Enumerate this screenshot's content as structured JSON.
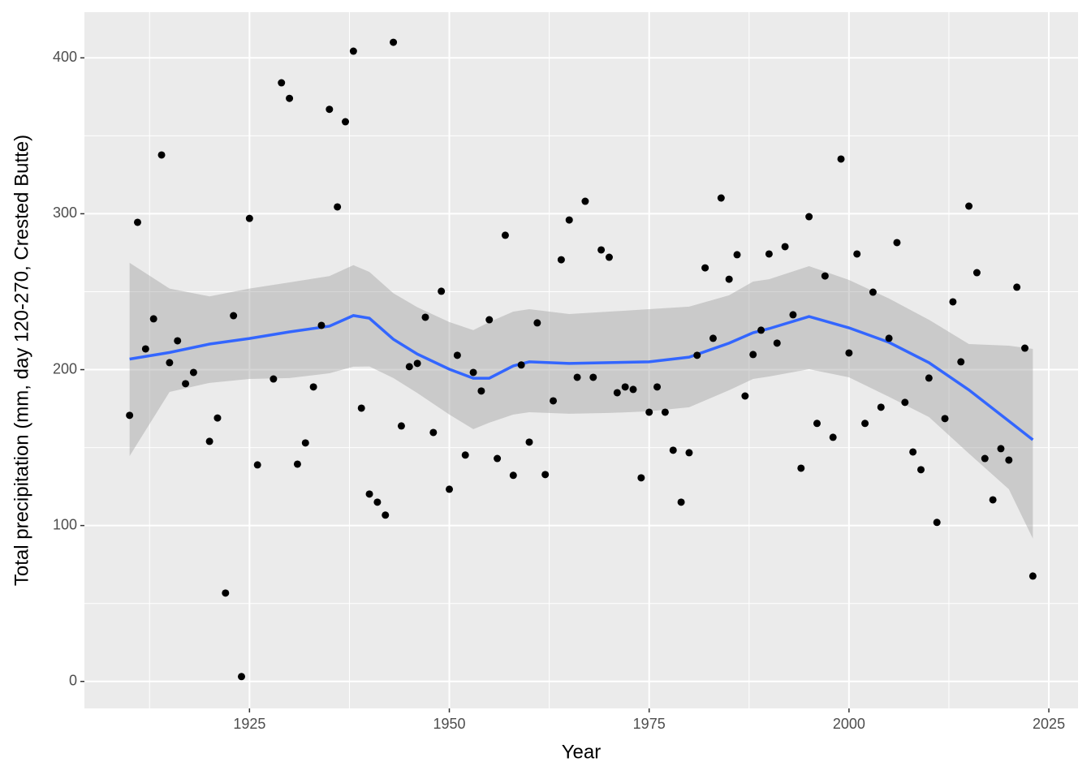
{
  "chart_data": {
    "type": "scatter",
    "x_label": "Year",
    "y_label": "Total precipitation (mm, day 120-270, Crested Butte)",
    "xlim": [
      1904.35,
      2028.65
    ],
    "ylim": [
      -17.3,
      429.3
    ],
    "xticks": [
      1925,
      1950,
      1975,
      2000,
      2025
    ],
    "yticks": [
      0,
      100,
      200,
      300,
      400
    ],
    "grid": true,
    "point_color": "#000000",
    "x": [
      1910,
      1911,
      1912,
      1913,
      1914,
      1915,
      1916,
      1917,
      1918,
      1920,
      1921,
      1922,
      1923,
      1924,
      1925,
      1926,
      1928,
      1929,
      1930,
      1931,
      1932,
      1933,
      1934,
      1935,
      1936,
      1937,
      1938,
      1939,
      1940,
      1941,
      1942,
      1943,
      1944,
      1945,
      1946,
      1947,
      1948,
      1949,
      1950,
      1951,
      1952,
      1953,
      1954,
      1955,
      1956,
      1957,
      1958,
      1959,
      1960,
      1961,
      1962,
      1963,
      1964,
      1965,
      1966,
      1967,
      1968,
      1969,
      1970,
      1971,
      1972,
      1973,
      1974,
      1975,
      1976,
      1977,
      1978,
      1979,
      1980,
      1981,
      1982,
      1983,
      1984,
      1985,
      1986,
      1987,
      1988,
      1989,
      1990,
      1991,
      1992,
      1993,
      1994,
      1995,
      1996,
      1997,
      1998,
      1999,
      2000,
      2001,
      2002,
      2003,
      2004,
      2005,
      2006,
      2007,
      2008,
      2009,
      2010,
      2011,
      2012,
      2013,
      2014,
      2015,
      2016,
      2017,
      2018,
      2019,
      2020,
      2021,
      2022,
      2023
    ],
    "values": [
      170.7,
      294.5,
      213.3,
      232.6,
      337.7,
      204.5,
      218.5,
      191,
      198.2,
      154,
      169,
      56.7,
      234.6,
      3.1,
      297,
      138.9,
      194,
      384,
      374,
      139.4,
      153,
      188.9,
      228.4,
      367,
      304.4,
      359,
      404.3,
      175.3,
      120.2,
      115,
      106.7,
      410,
      163.9,
      201.9,
      204,
      233.6,
      159.7,
      250.3,
      123.3,
      209.2,
      145.2,
      198.2,
      186.3,
      232,
      143,
      286.2,
      132.2,
      203,
      153.5,
      230,
      132.7,
      180,
      270.5,
      296,
      195.1,
      308,
      195.1,
      276.8,
      272.1,
      185.2,
      188.9,
      187.3,
      130.6,
      172.7,
      188.9,
      172.7,
      148.3,
      115,
      146.7,
      209.2,
      265.3,
      220.1,
      310.1,
      258,
      273.7,
      183.1,
      209.7,
      225.3,
      274.2,
      217,
      278.9,
      235.2,
      136.8,
      298.1,
      165.5,
      260.1,
      156.6,
      335.1,
      210.7,
      274.2,
      165.5,
      249.7,
      175.9,
      220.1,
      281.5,
      179,
      147.2,
      135.8,
      194.6,
      102,
      168.6,
      243.5,
      205,
      304.9,
      262.2,
      143,
      116.5,
      149.3,
      142,
      252.9,
      213.8,
      67.6
    ],
    "smooth": {
      "color": "#3366FF",
      "band_color": "#999999",
      "x": [
        1910,
        1915,
        1920,
        1925,
        1930,
        1935,
        1938,
        1940,
        1943,
        1946,
        1950,
        1953,
        1955,
        1958,
        1960,
        1965,
        1970,
        1975,
        1980,
        1985,
        1988,
        1990,
        1995,
        2000,
        2005,
        2010,
        2015,
        2020,
        2023
      ],
      "y": [
        206.8,
        211,
        216.4,
        220,
        224.2,
        227.9,
        234.7,
        233,
        219.5,
        210,
        200.3,
        194.5,
        194.5,
        202.4,
        205,
        204,
        204.5,
        205,
        208,
        217,
        223.7,
        226.3,
        234.1,
        226.8,
        217.5,
        204.5,
        187,
        167,
        155
      ],
      "ymax": [
        268.5,
        252,
        247,
        252,
        256,
        260,
        267,
        262.7,
        249,
        240,
        230.5,
        225.3,
        230.5,
        237.2,
        238.8,
        235.7,
        237.2,
        238.8,
        240.4,
        247.7,
        256.5,
        258,
        266.4,
        257.5,
        245.6,
        232,
        216.4,
        215.4,
        213.3
      ],
      "ymin": [
        144.6,
        185.7,
        191.5,
        194,
        194.6,
        197.7,
        201.9,
        202,
        194.6,
        185,
        171.2,
        161.8,
        166,
        171.2,
        172.7,
        171.7,
        172.2,
        173.3,
        175.9,
        186.8,
        194,
        195.6,
        200.3,
        195.1,
        182.6,
        169.6,
        146.2,
        123.3,
        91.6
      ]
    }
  }
}
